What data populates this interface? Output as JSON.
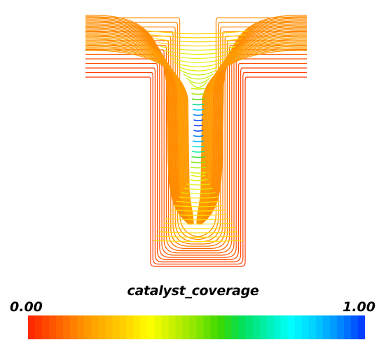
{
  "colorbar": {
    "title": "catalyst_coverage",
    "min_label": "0.00",
    "max_label": "1.00",
    "colors": [
      "#ff2a00",
      "#ff5a00",
      "#ff8a00",
      "#ffb000",
      "#ffd400",
      "#ffff00",
      "#c8f000",
      "#8ae600",
      "#3ad900",
      "#00e060",
      "#00f0b0",
      "#00ffff",
      "#00d0ff",
      "#0090ff",
      "#0040ff"
    ]
  }
}
